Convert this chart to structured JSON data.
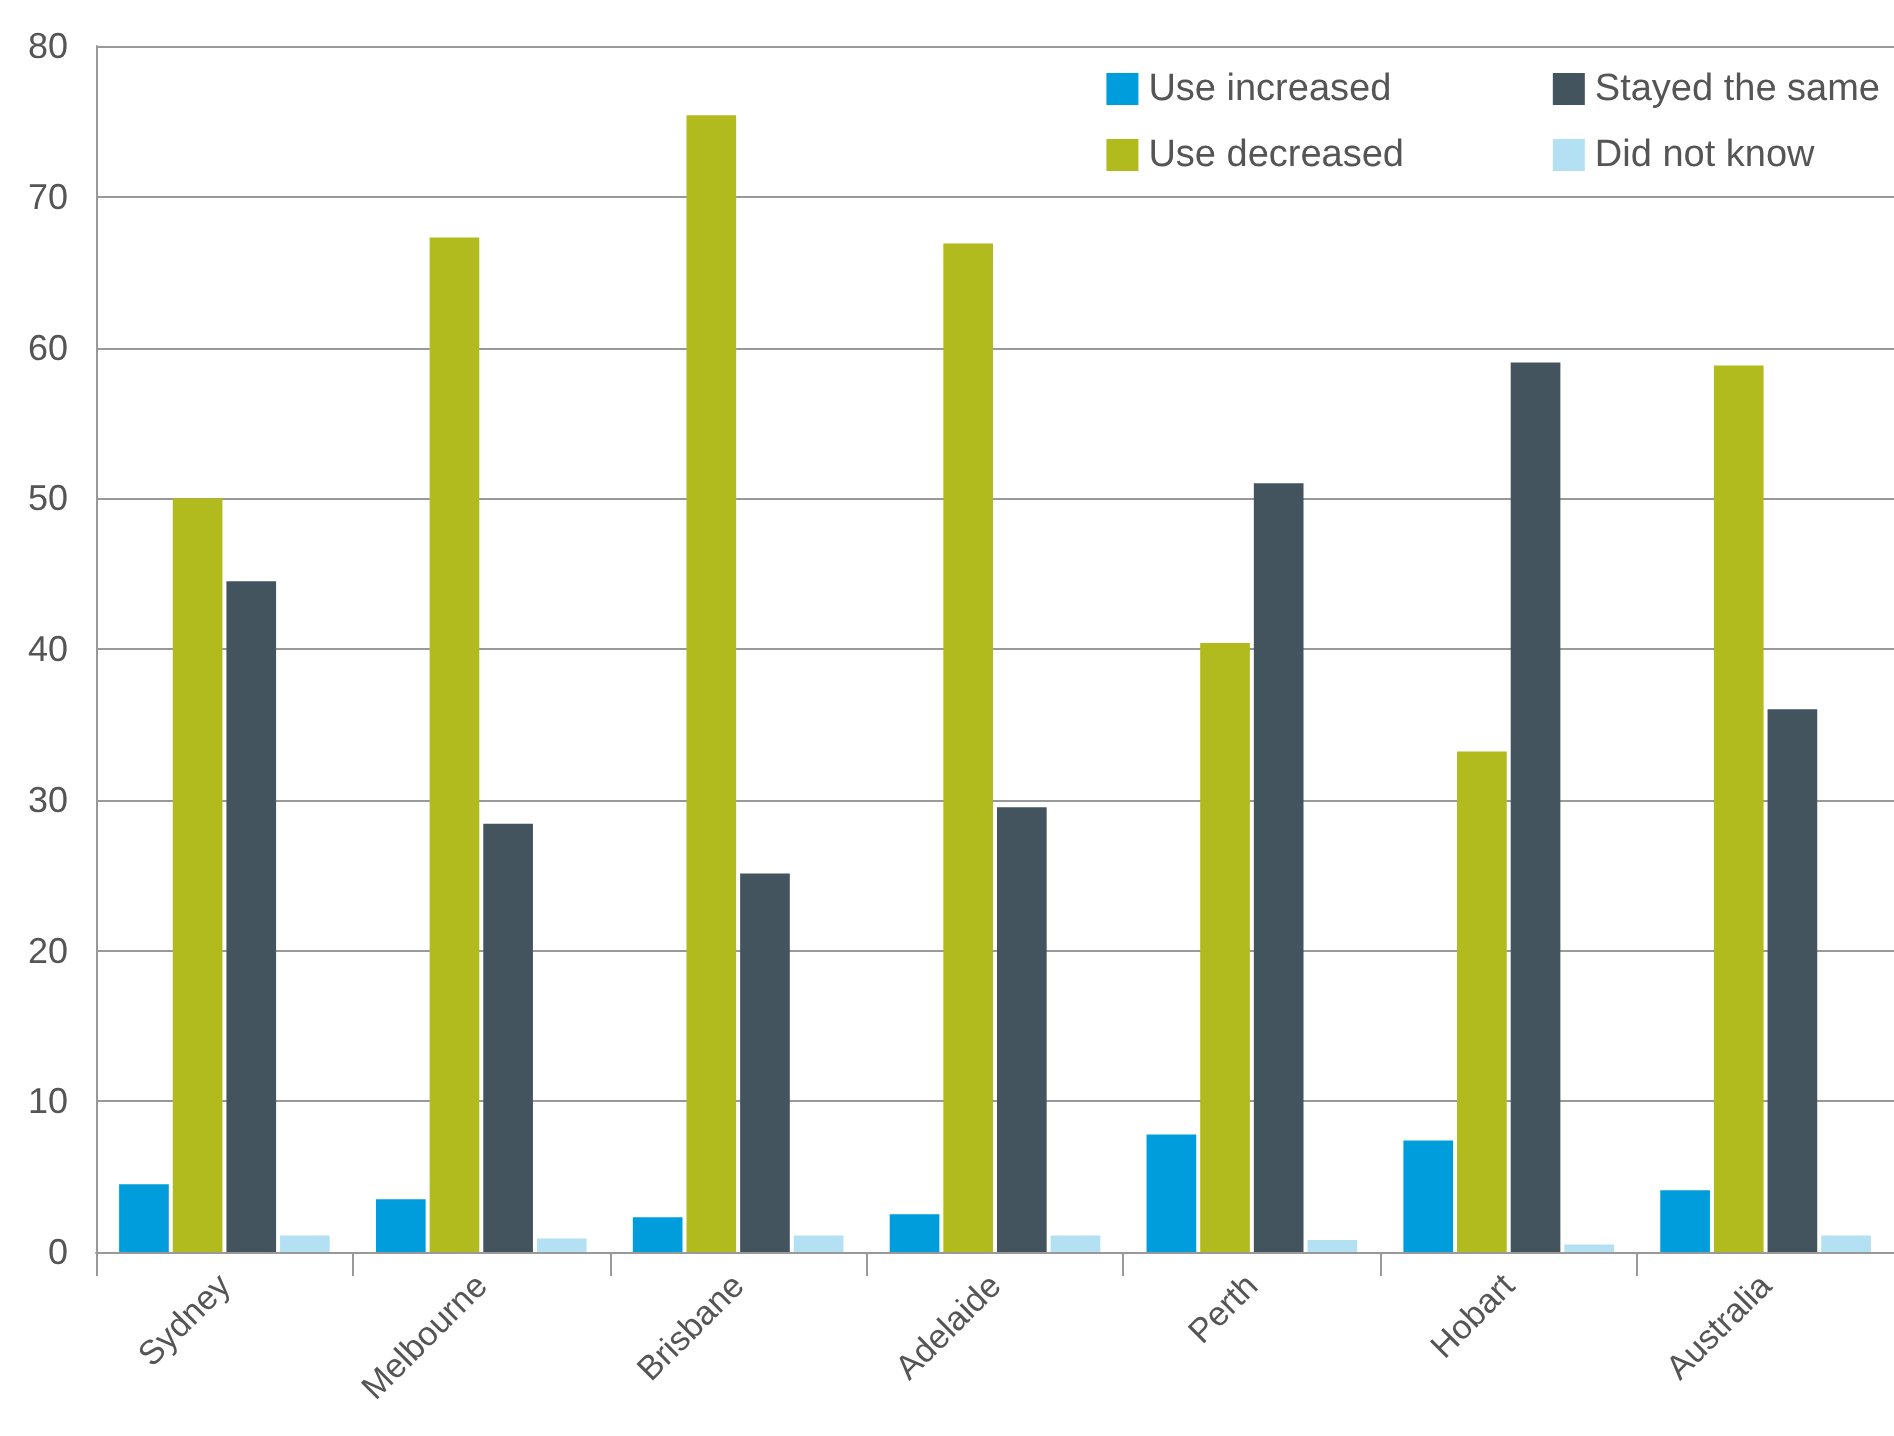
{
  "chart_data": {
    "type": "bar",
    "categories": [
      "Sydney",
      "Melbourne",
      "Brisbane",
      "Adelaide",
      "Perth",
      "Hobart",
      "Australia"
    ],
    "series": [
      {
        "name": "Use increased",
        "color": "#009ddc",
        "values": [
          4.5,
          3.5,
          2.3,
          2.5,
          7.8,
          7.4,
          4.1
        ]
      },
      {
        "name": "Use decreased",
        "color": "#b2bb1e",
        "values": [
          50,
          67.3,
          75.4,
          66.9,
          40.4,
          33.2,
          58.8
        ]
      },
      {
        "name": "Stayed the same",
        "color": "#44545f",
        "values": [
          44.5,
          28.4,
          25.1,
          29.5,
          51,
          59,
          36
        ]
      },
      {
        "name": "Did not know",
        "color": "#b3e1f3",
        "values": [
          1.1,
          0.9,
          1.1,
          1.1,
          0.8,
          0.5,
          1.1
        ]
      }
    ],
    "ylim": [
      0,
      80
    ],
    "yticks": [
      0,
      10,
      20,
      30,
      40,
      50,
      60,
      70,
      80
    ],
    "grid": "y",
    "legend": "top right"
  }
}
